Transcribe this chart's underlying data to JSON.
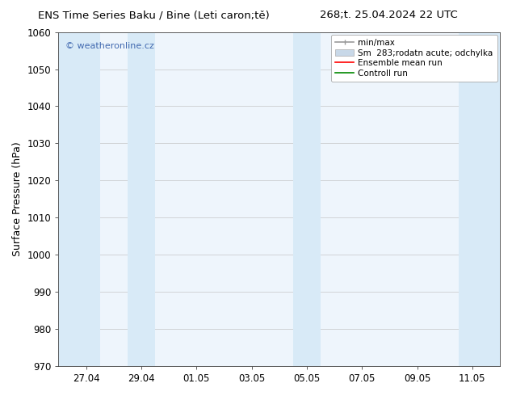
{
  "title_left": "ENS Time Series Baku / Bine (Leti caron;tě)",
  "title_right": "268;t. 25.04.2024 22 UTC",
  "ylabel": "Surface Pressure (hPa)",
  "ylim": [
    970,
    1060
  ],
  "yticks": [
    970,
    980,
    990,
    1000,
    1010,
    1020,
    1030,
    1040,
    1050,
    1060
  ],
  "xtick_labels": [
    "27.04",
    "29.04",
    "01.05",
    "03.05",
    "05.05",
    "07.05",
    "09.05",
    "11.05"
  ],
  "xtick_positions": [
    1,
    3,
    5,
    7,
    9,
    11,
    13,
    15
  ],
  "xlim": [
    0,
    16
  ],
  "shaded_bands": [
    {
      "x_start": 0.0,
      "x_end": 1.5
    },
    {
      "x_start": 2.5,
      "x_end": 3.5
    },
    {
      "x_start": 8.5,
      "x_end": 9.5
    },
    {
      "x_start": 14.5,
      "x_end": 16.0
    }
  ],
  "band_color": "#d8eaf7",
  "copyright_text": "© weatheronline.cz",
  "copyright_color": "#4169b0",
  "legend_labels": [
    "min/max",
    "Sm  283;rodatn acute; odchylka",
    "Ensemble mean run",
    "Controll run"
  ],
  "minmax_color": "#999999",
  "sm_facecolor": "#c8d8e8",
  "sm_edgecolor": "#aaaaaa",
  "ensemble_color": "#ff0000",
  "control_color": "#008800",
  "background_color": "#ffffff",
  "plot_bg_color": "#eef5fc",
  "title_fontsize": 9.5,
  "ylabel_fontsize": 9,
  "tick_fontsize": 8.5,
  "legend_fontsize": 7.5,
  "copyright_fontsize": 8
}
